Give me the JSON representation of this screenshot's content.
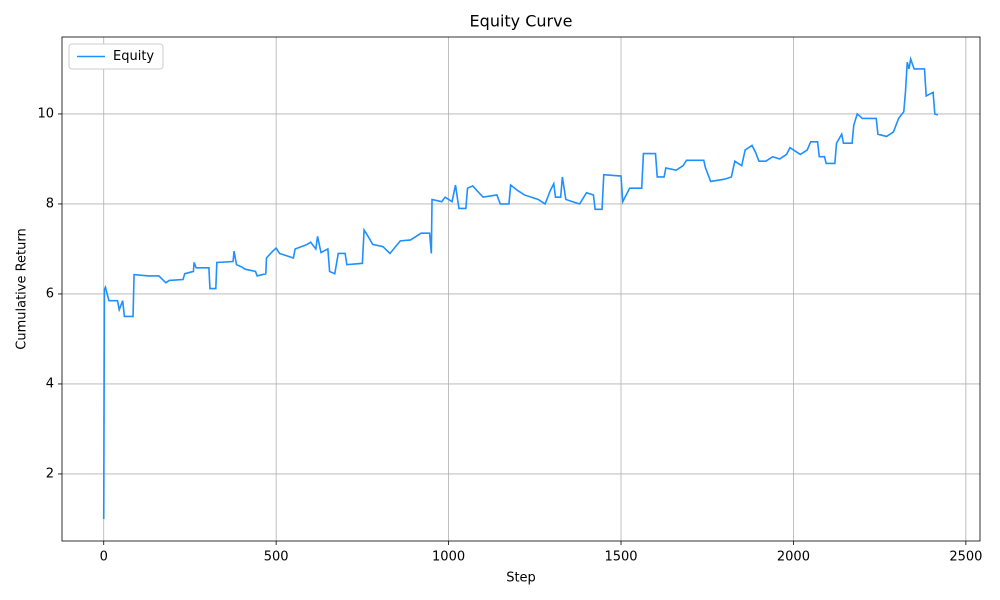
{
  "chart_data": {
    "type": "line",
    "title": "Equity Curve",
    "x_label": "Step",
    "y_label": "Cumulative Return",
    "x": [
      0,
      2,
      5,
      15,
      40,
      45,
      55,
      60,
      85,
      88,
      130,
      160,
      180,
      190,
      230,
      235,
      260,
      262,
      268,
      305,
      308,
      325,
      328,
      375,
      378,
      385,
      400,
      410,
      440,
      445,
      470,
      472,
      490,
      500,
      510,
      550,
      555,
      590,
      600,
      615,
      620,
      630,
      650,
      655,
      670,
      680,
      700,
      705,
      750,
      755,
      765,
      780,
      810,
      830,
      860,
      890,
      920,
      945,
      950,
      952,
      980,
      990,
      1010,
      1020,
      1030,
      1050,
      1055,
      1070,
      1100,
      1140,
      1150,
      1175,
      1180,
      1200,
      1220,
      1260,
      1280,
      1295,
      1305,
      1310,
      1325,
      1330,
      1340,
      1360,
      1380,
      1400,
      1420,
      1425,
      1445,
      1450,
      1500,
      1505,
      1525,
      1560,
      1565,
      1600,
      1605,
      1625,
      1630,
      1660,
      1680,
      1690,
      1740,
      1745,
      1760,
      1800,
      1820,
      1830,
      1850,
      1860,
      1880,
      1890,
      1900,
      1920,
      1940,
      1960,
      1980,
      1990,
      2020,
      2040,
      2050,
      2070,
      2075,
      2090,
      2095,
      2120,
      2125,
      2140,
      2145,
      2170,
      2175,
      2185,
      2200,
      2240,
      2245,
      2270,
      2290,
      2305,
      2320,
      2325,
      2330,
      2335,
      2340,
      2350,
      2380,
      2385,
      2405,
      2410,
      2419
    ],
    "series": [
      {
        "name": "Equity",
        "color": "#1e90ff",
        "values": [
          1.0,
          6.1,
          6.15,
          5.85,
          5.85,
          5.65,
          5.85,
          5.5,
          5.5,
          6.43,
          6.4,
          6.4,
          6.25,
          6.3,
          6.32,
          6.45,
          6.5,
          6.7,
          6.58,
          6.58,
          6.12,
          6.12,
          6.7,
          6.72,
          6.95,
          6.65,
          6.6,
          6.55,
          6.5,
          6.4,
          6.45,
          6.8,
          6.95,
          7.02,
          6.9,
          6.8,
          7.0,
          7.1,
          7.15,
          7.0,
          7.28,
          6.92,
          7.0,
          6.5,
          6.45,
          6.9,
          6.9,
          6.65,
          6.68,
          7.42,
          7.3,
          7.1,
          7.05,
          6.9,
          7.18,
          7.2,
          7.35,
          7.35,
          6.9,
          8.1,
          8.05,
          8.15,
          8.05,
          8.42,
          7.9,
          7.9,
          8.35,
          8.4,
          8.15,
          8.2,
          8.0,
          8.0,
          8.42,
          8.3,
          8.2,
          8.1,
          8.0,
          8.3,
          8.45,
          8.15,
          8.15,
          8.6,
          8.1,
          8.05,
          8.0,
          8.25,
          8.2,
          7.88,
          7.88,
          8.65,
          8.62,
          8.05,
          8.35,
          8.35,
          9.12,
          9.12,
          8.6,
          8.6,
          8.8,
          8.75,
          8.85,
          8.97,
          8.97,
          8.8,
          8.5,
          8.55,
          8.6,
          8.95,
          8.85,
          9.2,
          9.3,
          9.15,
          8.95,
          8.95,
          9.05,
          9.0,
          9.1,
          9.25,
          9.1,
          9.2,
          9.38,
          9.38,
          9.05,
          9.05,
          8.9,
          8.9,
          9.35,
          9.55,
          9.35,
          9.35,
          9.75,
          10.0,
          9.9,
          9.9,
          9.55,
          9.5,
          9.6,
          9.9,
          10.05,
          10.5,
          11.15,
          11.0,
          11.22,
          11.0,
          11.0,
          10.4,
          10.48,
          10.0,
          9.98
        ]
      }
    ],
    "xlim": [
      -121,
      2541
    ],
    "ylim": [
      0.51,
      11.71
    ],
    "xticks": [
      0,
      500,
      1000,
      1500,
      2000,
      2500
    ],
    "yticks": [
      2,
      4,
      6,
      8,
      10
    ],
    "grid": true,
    "legend": "upper left"
  }
}
